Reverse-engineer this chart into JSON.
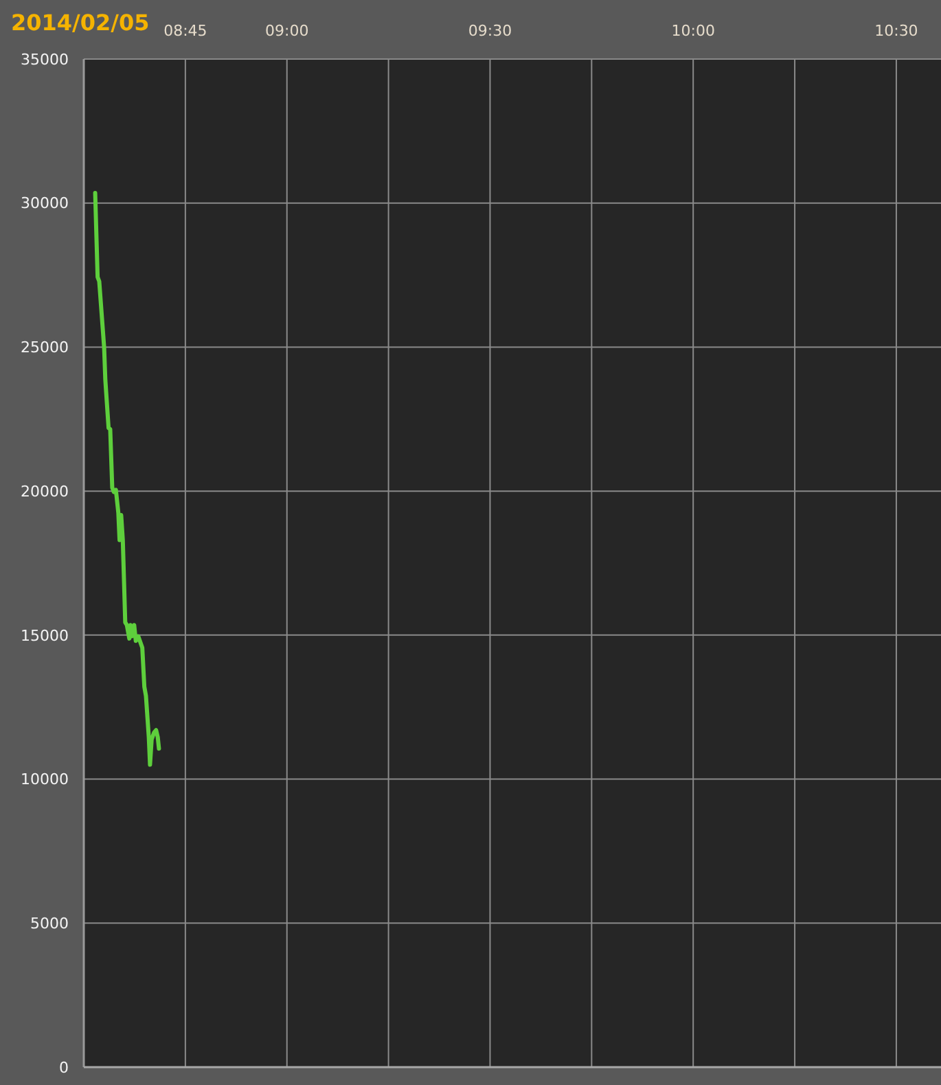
{
  "chart_data": {
    "type": "line",
    "title": "2014/02/05",
    "x": [
      8.528,
      8.534,
      8.538,
      8.55,
      8.553,
      8.561,
      8.565,
      8.57,
      8.574,
      8.579,
      8.585,
      8.588,
      8.592,
      8.596,
      8.602,
      8.606,
      8.612,
      8.615,
      8.618,
      8.624,
      8.628,
      8.634,
      8.644,
      8.649,
      8.653,
      8.66,
      8.663,
      8.667,
      8.673,
      8.678,
      8.682,
      8.685
    ],
    "series": [
      {
        "color": "#5ecf3c",
        "values": [
          30350,
          27430,
          27280,
          25000,
          23860,
          22190,
          22150,
          20120,
          19970,
          20040,
          19250,
          18300,
          19170,
          18300,
          15440,
          15350,
          14880,
          15350,
          14960,
          15350,
          14800,
          14960,
          14560,
          13210,
          12890,
          11460,
          10500,
          11380,
          11620,
          11700,
          11460,
          11060
        ]
      }
    ],
    "xlim": [
      8.5,
      10.61
    ],
    "xticks": [
      {
        "value": 8.75,
        "label": "08:45"
      },
      {
        "value": 9,
        "label": "09:00"
      },
      {
        "value": 9.25,
        "label": null
      },
      {
        "value": 9.5,
        "label": "09:30"
      },
      {
        "value": 9.75,
        "label": null
      },
      {
        "value": 10,
        "label": "10:00"
      },
      {
        "value": 10.25,
        "label": null
      },
      {
        "value": 10.5,
        "label": "10:30"
      }
    ],
    "ylim": [
      0,
      35000
    ],
    "yticks": [
      0,
      5000,
      10000,
      15000,
      20000,
      25000,
      30000,
      35000
    ],
    "grid": true,
    "line_style": "solid"
  }
}
